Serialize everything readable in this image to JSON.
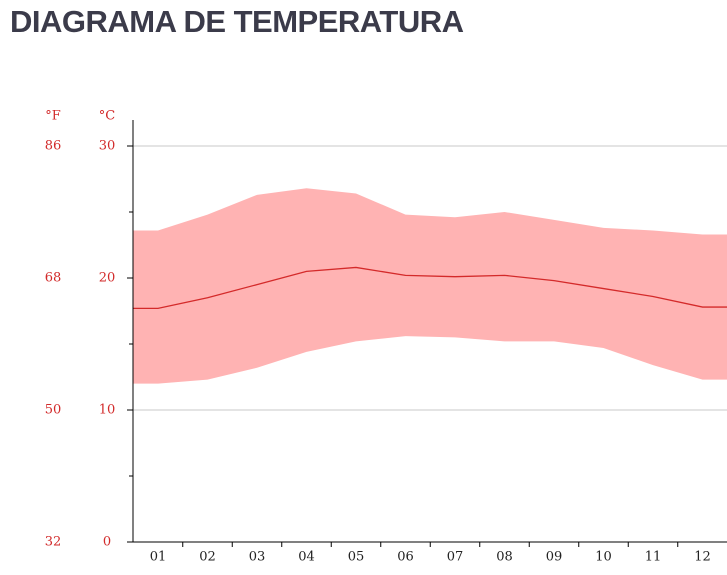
{
  "chart_data": {
    "type": "band-line",
    "title": "DIAGRAMA DE TEMPERATURA",
    "y_unit": "°C",
    "y2_unit": "°F",
    "categories": [
      "01",
      "02",
      "03",
      "04",
      "05",
      "06",
      "07",
      "08",
      "09",
      "10",
      "11",
      "12"
    ],
    "band": {
      "color": "#ffb3b3",
      "upper": [
        23.6,
        24.8,
        26.3,
        26.8,
        26.4,
        24.8,
        24.6,
        25.0,
        24.4,
        23.8,
        23.6,
        23.3
      ],
      "lower": [
        12.0,
        12.3,
        13.2,
        14.4,
        15.2,
        15.6,
        15.5,
        15.2,
        15.2,
        14.7,
        13.4,
        12.3
      ]
    },
    "line": {
      "color": "#d42a2a",
      "values": [
        17.7,
        18.5,
        19.5,
        20.5,
        20.8,
        20.2,
        20.1,
        20.2,
        19.8,
        19.2,
        18.6,
        17.8
      ]
    },
    "ylim": [
      0,
      30
    ],
    "yticks": [
      0,
      10,
      20,
      30
    ],
    "yminorticks": [
      5,
      15,
      25
    ],
    "y2lim": [
      32,
      86
    ],
    "y2ticks": [
      32,
      50,
      68,
      86
    ],
    "grid": true
  }
}
